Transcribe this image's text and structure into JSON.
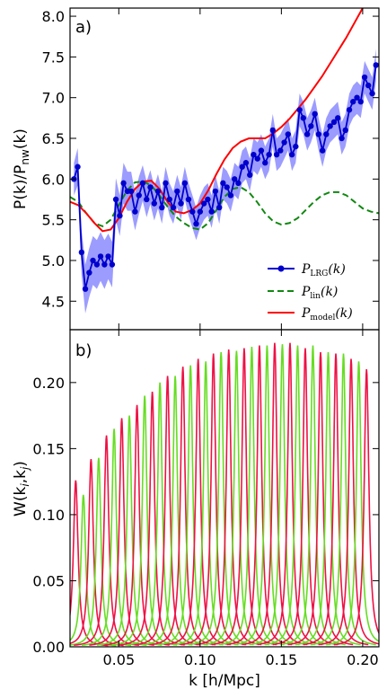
{
  "chart_data": [
    {
      "type": "line",
      "panel_label": "a)",
      "ylabel_main": "P(k)/P",
      "ylabel_sub": "nw",
      "ylabel_tail": "(k)",
      "xlim": [
        0.02,
        0.21
      ],
      "ylim": [
        4.15,
        8.1
      ],
      "yticks": [
        "4.5",
        "5.0",
        "5.5",
        "6.0",
        "6.5",
        "7.0",
        "7.5",
        "8.0"
      ],
      "grid": false,
      "legend_position": "lower-right",
      "colors": {
        "lrg": "#0000cc",
        "band": "#7b7bff",
        "lin": "#118811",
        "model": "#ff0000"
      },
      "series": [
        {
          "name": "P_LRG(k)",
          "label_main": "P",
          "label_sub": "LRG",
          "label_tail": "(k)",
          "style": "blue-dots",
          "x": [
            0.0224,
            0.0247,
            0.0271,
            0.0294,
            0.0318,
            0.0341,
            0.0365,
            0.0388,
            0.0412,
            0.0435,
            0.0459,
            0.0482,
            0.0506,
            0.0529,
            0.0553,
            0.0576,
            0.06,
            0.0624,
            0.0647,
            0.0671,
            0.0694,
            0.0718,
            0.0741,
            0.0765,
            0.0788,
            0.0812,
            0.0835,
            0.0859,
            0.0882,
            0.0906,
            0.0929,
            0.0953,
            0.0976,
            0.1,
            0.1024,
            0.1047,
            0.1071,
            0.1094,
            0.1118,
            0.1141,
            0.1165,
            0.1188,
            0.1212,
            0.1235,
            0.1259,
            0.1282,
            0.1306,
            0.1329,
            0.1353,
            0.1376,
            0.14,
            0.1424,
            0.1447,
            0.1471,
            0.1494,
            0.1518,
            0.1541,
            0.1565,
            0.1588,
            0.1612,
            0.1635,
            0.1659,
            0.1682,
            0.1706,
            0.1729,
            0.1753,
            0.1776,
            0.18,
            0.1824,
            0.1847,
            0.1871,
            0.1894,
            0.1918,
            0.1941,
            0.1965,
            0.1988,
            0.2012,
            0.2035,
            0.2059,
            0.2082
          ],
          "y": [
            6.0,
            6.15,
            5.1,
            4.65,
            4.85,
            5.0,
            4.95,
            5.05,
            4.95,
            5.05,
            4.95,
            5.75,
            5.55,
            5.95,
            5.85,
            5.85,
            5.6,
            5.8,
            5.95,
            5.75,
            5.9,
            5.7,
            5.85,
            5.65,
            5.95,
            5.75,
            5.65,
            5.85,
            5.7,
            5.95,
            5.75,
            5.6,
            5.45,
            5.6,
            5.7,
            5.75,
            5.6,
            5.85,
            5.65,
            5.95,
            5.9,
            5.8,
            6.0,
            5.95,
            6.15,
            6.2,
            6.05,
            6.3,
            6.25,
            6.35,
            6.2,
            6.3,
            6.6,
            6.3,
            6.35,
            6.45,
            6.55,
            6.3,
            6.4,
            6.85,
            6.75,
            6.55,
            6.65,
            6.8,
            6.55,
            6.35,
            6.55,
            6.65,
            6.7,
            6.75,
            6.5,
            6.6,
            6.85,
            6.95,
            7.0,
            6.95,
            7.25,
            7.15,
            7.05,
            7.4
          ],
          "err": [
            0.2,
            0.23,
            0.28,
            0.3,
            0.3,
            0.3,
            0.3,
            0.3,
            0.3,
            0.28,
            0.28,
            0.26,
            0.25,
            0.25,
            0.24,
            0.24,
            0.23,
            0.23,
            0.22,
            0.22,
            0.21,
            0.21,
            0.21,
            0.2,
            0.2,
            0.2,
            0.2,
            0.2,
            0.2,
            0.2,
            0.2,
            0.2,
            0.2,
            0.2,
            0.2,
            0.2,
            0.2,
            0.2,
            0.2,
            0.2,
            0.2,
            0.2,
            0.2,
            0.2,
            0.2,
            0.2,
            0.2,
            0.2,
            0.2,
            0.2,
            0.2,
            0.2,
            0.2,
            0.2,
            0.2,
            0.2,
            0.2,
            0.2,
            0.2,
            0.2,
            0.2,
            0.2,
            0.2,
            0.2,
            0.2,
            0.2,
            0.2,
            0.2,
            0.2,
            0.2,
            0.2,
            0.2,
            0.2,
            0.2,
            0.2,
            0.2,
            0.2,
            0.2,
            0.2,
            0.2
          ]
        },
        {
          "name": "P_lin(k)",
          "label_main": "P",
          "label_sub": "lin",
          "label_tail": "(k)",
          "style": "green-dashed",
          "x": [
            0.02,
            0.025,
            0.03,
            0.035,
            0.04,
            0.045,
            0.05,
            0.055,
            0.06,
            0.065,
            0.07,
            0.075,
            0.08,
            0.085,
            0.09,
            0.095,
            0.1,
            0.105,
            0.11,
            0.115,
            0.12,
            0.125,
            0.13,
            0.135,
            0.14,
            0.145,
            0.15,
            0.155,
            0.16,
            0.165,
            0.17,
            0.175,
            0.18,
            0.185,
            0.19,
            0.195,
            0.2,
            0.205,
            0.21
          ],
          "y": [
            5.78,
            5.72,
            5.58,
            5.46,
            5.42,
            5.5,
            5.68,
            5.86,
            5.96,
            5.97,
            5.92,
            5.8,
            5.66,
            5.54,
            5.46,
            5.4,
            5.38,
            5.46,
            5.62,
            5.78,
            5.88,
            5.9,
            5.84,
            5.72,
            5.58,
            5.48,
            5.44,
            5.46,
            5.52,
            5.62,
            5.72,
            5.8,
            5.84,
            5.84,
            5.8,
            5.72,
            5.64,
            5.6,
            5.58
          ]
        },
        {
          "name": "P_model(k)",
          "label_main": "P",
          "label_sub": "model",
          "label_tail": "(k)",
          "style": "red-solid",
          "x": [
            0.02,
            0.025,
            0.03,
            0.035,
            0.04,
            0.045,
            0.05,
            0.055,
            0.06,
            0.065,
            0.07,
            0.075,
            0.08,
            0.085,
            0.09,
            0.095,
            0.1,
            0.105,
            0.11,
            0.115,
            0.12,
            0.125,
            0.13,
            0.135,
            0.14,
            0.145,
            0.15,
            0.155,
            0.16,
            0.165,
            0.17,
            0.175,
            0.18,
            0.185,
            0.19,
            0.195,
            0.2
          ],
          "y": [
            5.72,
            5.68,
            5.58,
            5.46,
            5.36,
            5.38,
            5.52,
            5.72,
            5.88,
            5.97,
            5.98,
            5.88,
            5.72,
            5.6,
            5.58,
            5.62,
            5.7,
            5.86,
            6.06,
            6.24,
            6.38,
            6.46,
            6.5,
            6.5,
            6.5,
            6.56,
            6.64,
            6.74,
            6.86,
            6.98,
            7.12,
            7.26,
            7.42,
            7.58,
            7.74,
            7.92,
            8.1
          ]
        }
      ]
    },
    {
      "type": "line",
      "panel_label": "b)",
      "ylabel_main": "W(k",
      "ylabel_sub1": "i",
      "ylabel_mid": ",k",
      "ylabel_sub2": "j",
      "ylabel_tail": ")",
      "xlabel": "k [h/Mpc]",
      "xlim": [
        0.02,
        0.21
      ],
      "ylim": [
        0,
        0.24
      ],
      "xticks": [
        "0.05",
        "0.10",
        "0.15",
        "0.20"
      ],
      "yticks": [
        "0.00",
        "0.05",
        "0.10",
        "0.15",
        "0.20"
      ],
      "grid": false,
      "colors": [
        "#ee1144",
        "#66dd22"
      ],
      "series_shape": "narrow-peaked window functions, alternating red/green",
      "peaks": {
        "x": [
          0.0235,
          0.0282,
          0.0329,
          0.0376,
          0.0424,
          0.0471,
          0.0518,
          0.0565,
          0.0612,
          0.0659,
          0.0706,
          0.0753,
          0.08,
          0.0847,
          0.0894,
          0.0941,
          0.0988,
          0.1035,
          0.1082,
          0.1129,
          0.1176,
          0.1224,
          0.1271,
          0.1318,
          0.1365,
          0.1412,
          0.1459,
          0.1506,
          0.1553,
          0.16,
          0.1647,
          0.1694,
          0.1741,
          0.1788,
          0.1835,
          0.1882,
          0.1929,
          0.1976,
          0.2024
        ],
        "height": [
          0.126,
          0.115,
          0.142,
          0.143,
          0.16,
          0.165,
          0.173,
          0.175,
          0.183,
          0.19,
          0.193,
          0.2,
          0.205,
          0.205,
          0.212,
          0.213,
          0.218,
          0.216,
          0.222,
          0.223,
          0.225,
          0.224,
          0.226,
          0.227,
          0.228,
          0.228,
          0.23,
          0.229,
          0.23,
          0.228,
          0.226,
          0.228,
          0.223,
          0.223,
          0.222,
          0.222,
          0.218,
          0.216,
          0.21
        ],
        "width": 0.0022
      }
    }
  ]
}
